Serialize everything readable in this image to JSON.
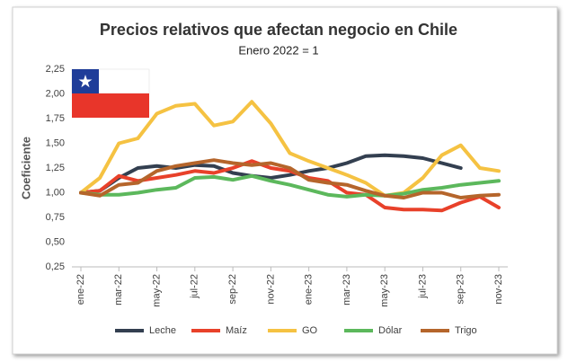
{
  "chart_data": {
    "type": "line",
    "title": "Precios relativos que afectan negocio en Chile",
    "subtitle": "Enero 2022 = 1",
    "y_label": "Coeficiente",
    "categories": [
      "ene-22",
      null,
      "mar-22",
      null,
      "may-22",
      null,
      "jul-22",
      null,
      "sep-22",
      null,
      "nov-22",
      null,
      "ene-23",
      null,
      "mar-23",
      null,
      "may-23",
      null,
      "jul-23",
      null,
      "sep-23",
      null,
      "nov-23"
    ],
    "series": [
      {
        "name": "Leche",
        "color": "#333f50",
        "values": [
          1.0,
          1.02,
          1.15,
          1.25,
          1.27,
          1.25,
          1.28,
          1.27,
          1.2,
          1.17,
          1.15,
          1.18,
          1.22,
          1.25,
          1.3,
          1.37,
          1.38,
          1.37,
          1.35,
          1.3,
          1.25,
          null,
          null
        ]
      },
      {
        "name": "Maíz",
        "color": "#e8412a",
        "values": [
          1.0,
          1.02,
          1.17,
          1.12,
          1.15,
          1.18,
          1.22,
          1.2,
          1.25,
          1.32,
          1.25,
          1.22,
          1.15,
          1.12,
          1.0,
          0.98,
          0.85,
          0.83,
          0.83,
          0.82,
          0.9,
          0.96,
          0.85
        ]
      },
      {
        "name": "GO",
        "color": "#f5c242",
        "values": [
          1.0,
          1.15,
          1.5,
          1.55,
          1.8,
          1.88,
          1.9,
          1.68,
          1.72,
          1.92,
          1.7,
          1.4,
          1.32,
          1.25,
          1.18,
          1.1,
          0.97,
          1.0,
          1.15,
          1.38,
          1.48,
          1.25,
          1.22
        ]
      },
      {
        "name": "Dólar",
        "color": "#5cb85c",
        "values": [
          1.0,
          0.98,
          0.98,
          1.0,
          1.03,
          1.05,
          1.15,
          1.16,
          1.13,
          1.17,
          1.12,
          1.08,
          1.03,
          0.98,
          0.96,
          0.98,
          0.97,
          0.99,
          1.03,
          1.05,
          1.08,
          1.1,
          1.12
        ]
      },
      {
        "name": "Trigo",
        "color": "#b5652b",
        "values": [
          1.0,
          0.97,
          1.08,
          1.1,
          1.22,
          1.27,
          1.3,
          1.33,
          1.3,
          1.28,
          1.3,
          1.25,
          1.13,
          1.1,
          1.08,
          1.02,
          0.97,
          0.95,
          1.0,
          1.0,
          0.95,
          0.97,
          0.98
        ]
      }
    ],
    "ylim": [
      0.25,
      2.25
    ],
    "yticks": [
      {
        "value": 0.25,
        "label": "0,25"
      },
      {
        "value": 0.5,
        "label": "0,50"
      },
      {
        "value": 0.75,
        "label": "0,75"
      },
      {
        "value": 1,
        "label": "1,00"
      },
      {
        "value": 1.25,
        "label": "1,25"
      },
      {
        "value": 1.5,
        "label": "1,50"
      },
      {
        "value": 1.75,
        "label": "1,75"
      },
      {
        "value": 2,
        "label": "2,00"
      },
      {
        "value": 2.25,
        "label": "2,25"
      }
    ],
    "grid": false,
    "legend": "bottom"
  }
}
